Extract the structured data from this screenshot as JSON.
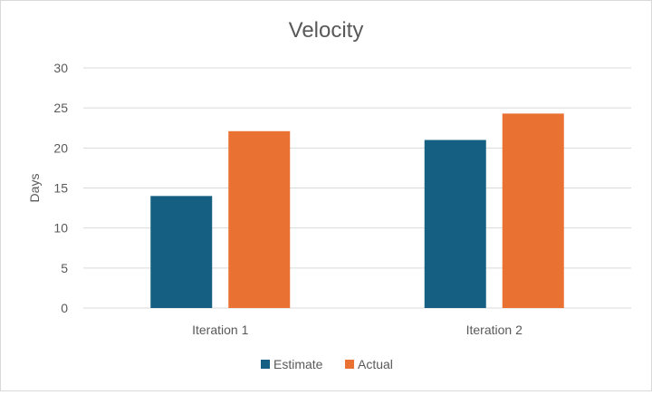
{
  "chart_data": {
    "type": "bar",
    "title": "Velocity",
    "xlabel": "",
    "ylabel": "Days",
    "categories": [
      "Iteration 1",
      "Iteration 2"
    ],
    "series": [
      {
        "name": "Estimate",
        "values": [
          14,
          21
        ],
        "color": "#156082"
      },
      {
        "name": "Actual",
        "values": [
          22.1,
          24.3
        ],
        "color": "#E97132"
      }
    ],
    "ylim": [
      0,
      30
    ],
    "yticks": [
      0,
      5,
      10,
      15,
      20,
      25,
      30
    ],
    "grid": true,
    "legend_position": "bottom"
  }
}
